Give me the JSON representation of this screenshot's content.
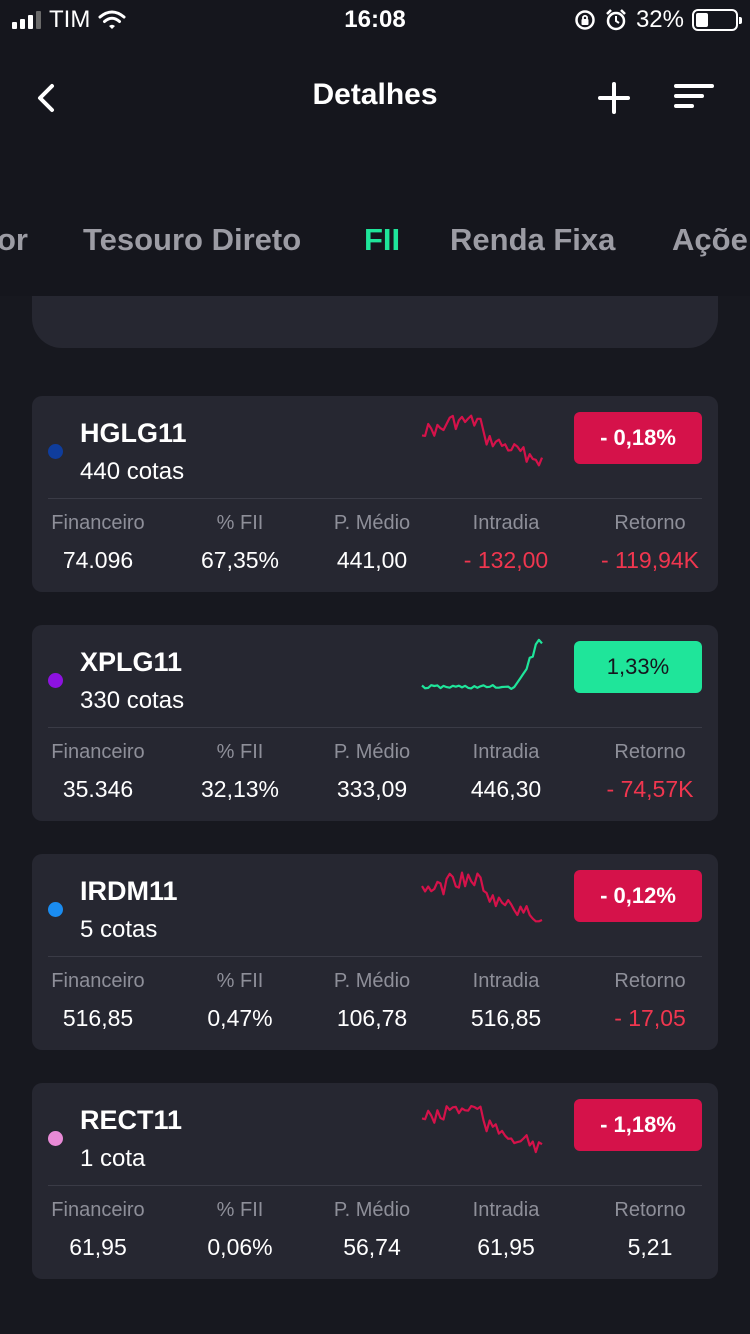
{
  "status_bar": {
    "carrier": "TIM",
    "time": "16:08",
    "battery": "32%",
    "battery_level": 0.32
  },
  "header": {
    "title": "Detalhes"
  },
  "tabs": [
    {
      "label": "or",
      "active": false
    },
    {
      "label": "Tesouro Direto",
      "active": false
    },
    {
      "label": "FII",
      "active": true
    },
    {
      "label": "Renda Fixa",
      "active": false
    },
    {
      "label": "Açõe",
      "active": false
    }
  ],
  "columns": [
    "Financeiro",
    "% FII",
    "P. Médio",
    "Intradia",
    "Retorno"
  ],
  "holdings": [
    {
      "ticker": "HGLG11",
      "cotas": "440 cotas",
      "dot_color": "#0f3d9c",
      "change": "- 0,18%",
      "trend": "down",
      "financeiro": "74.096",
      "pct_fii": "67,35%",
      "p_medio": "441,00",
      "intradia": "- 132,00",
      "intradia_negative": true,
      "retorno": "- 119,94K",
      "retorno_negative": true
    },
    {
      "ticker": "XPLG11",
      "cotas": "330 cotas",
      "dot_color": "#8d12e0",
      "change": "1,33%",
      "trend": "up",
      "financeiro": "35.346",
      "pct_fii": "32,13%",
      "p_medio": "333,09",
      "intradia": "446,30",
      "intradia_negative": false,
      "retorno": "- 74,57K",
      "retorno_negative": true
    },
    {
      "ticker": "IRDM11",
      "cotas": "5 cotas",
      "dot_color": "#1a8cf0",
      "change": "- 0,12%",
      "trend": "down",
      "financeiro": "516,85",
      "pct_fii": "0,47%",
      "p_medio": "106,78",
      "intradia": "516,85",
      "intradia_negative": false,
      "retorno": "- 17,05",
      "retorno_negative": true
    },
    {
      "ticker": "RECT11",
      "cotas": "1 cota",
      "dot_color": "#e88ad6",
      "change": "- 1,18%",
      "trend": "down",
      "financeiro": "61,95",
      "pct_fii": "0,06%",
      "p_medio": "56,74",
      "intradia": "61,95",
      "intradia_negative": false,
      "retorno": "5,21",
      "retorno_negative": false
    }
  ],
  "colors": {
    "accent": "#1fe59a",
    "negative": "#d5124a",
    "negative_text": "#f0364f"
  }
}
